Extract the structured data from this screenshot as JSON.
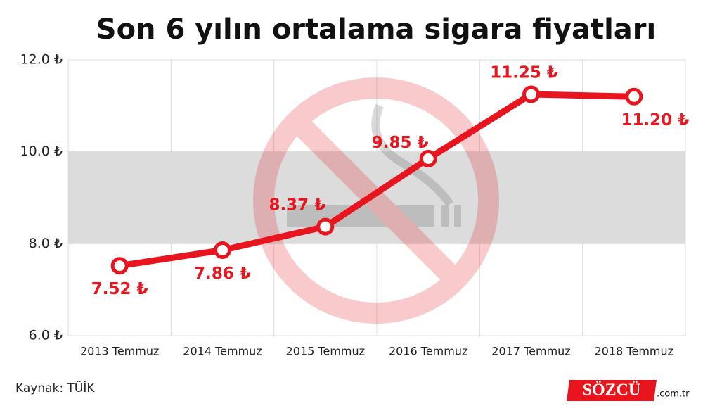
{
  "chart_data": {
    "type": "line",
    "title": "Son 6 yılın ortalama sigara fiyatları",
    "source": "Kaynak: TÜİK",
    "logo": "SÖZCÜ",
    "logo_suffix": ".com.tr",
    "categories": [
      "2013 Temmuz",
      "2014 Temmuz",
      "2015 Temmuz",
      "2016 Temmuz",
      "2017 Temmuz",
      "2018 Temmuz"
    ],
    "values": [
      7.52,
      7.86,
      8.37,
      9.85,
      11.25,
      11.2
    ],
    "value_labels": [
      "7.52 ₺",
      "7.86 ₺",
      "8.37 ₺",
      "9.85 ₺",
      "11.25 ₺",
      "11.20 ₺"
    ],
    "color": "#e8141e",
    "ylim": [
      6,
      12
    ],
    "yticks": [
      {
        "value": 6,
        "label": "6.0 ₺"
      },
      {
        "value": 8,
        "label": "8.0 ₺"
      },
      {
        "value": 10,
        "label": "10.0 ₺"
      },
      {
        "value": 12,
        "label": "12.0 ₺"
      }
    ],
    "grid": true
  }
}
